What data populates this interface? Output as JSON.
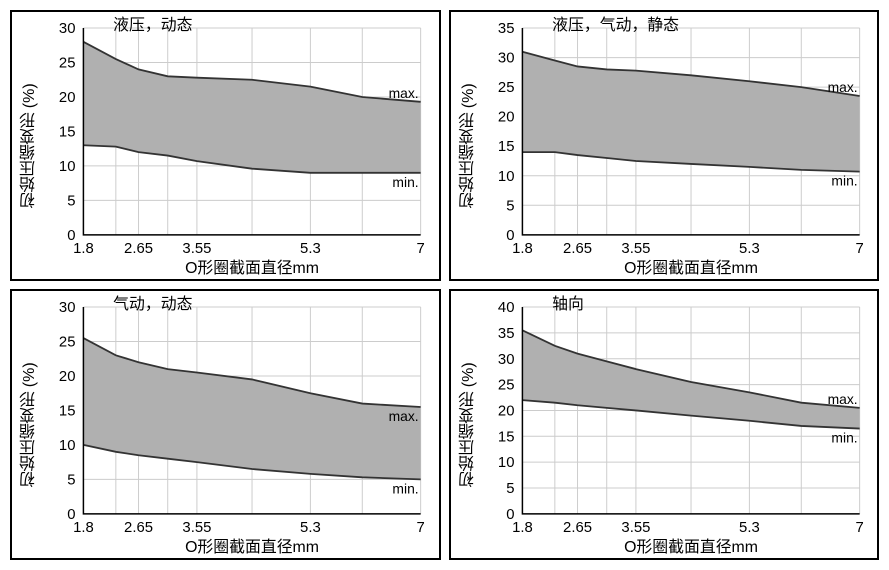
{
  "common": {
    "ylabel": "初始压缩变形 (%)",
    "xlabel": "O形圈截面直径mm",
    "xticks": [
      "1.8",
      "2.65",
      "3.55",
      "5.3",
      "7"
    ],
    "max_label": "max.",
    "min_label": "min.",
    "fill_color": "#b0b0b0",
    "grid_color": "#cccccc",
    "axis_color": "#000000",
    "line_color": "#333333",
    "bg_color": "#ffffff",
    "font_size_label": 16,
    "font_size_tick": 15,
    "x_points": [
      1.8,
      2.3,
      2.65,
      3.1,
      3.55,
      4.4,
      5.3,
      6.1,
      7.0
    ]
  },
  "panels": [
    {
      "title": "液压，动态",
      "ylim": [
        0,
        30
      ],
      "ytick_step": 5,
      "upper": [
        28,
        25.5,
        24,
        23,
        22.8,
        22.5,
        21.5,
        20,
        19.3
      ],
      "lower": [
        13,
        12.8,
        12,
        11.5,
        10.7,
        9.6,
        9,
        9,
        9
      ]
    },
    {
      "title": "液压，气动，静态",
      "ylim": [
        0,
        35
      ],
      "ytick_step": 5,
      "upper": [
        31,
        29.5,
        28.5,
        28,
        27.8,
        27,
        26,
        25,
        23.5
      ],
      "lower": [
        14,
        14,
        13.5,
        13,
        12.5,
        12,
        11.5,
        11,
        10.7
      ]
    },
    {
      "title": "气动，动态",
      "ylim": [
        0,
        30
      ],
      "ytick_step": 5,
      "upper": [
        25.5,
        23,
        22,
        21,
        20.5,
        19.5,
        17.5,
        16,
        15.5
      ],
      "lower": [
        10,
        9,
        8.5,
        8,
        7.5,
        6.5,
        5.8,
        5.3,
        5
      ],
      "annot_pos": "below"
    },
    {
      "title": "轴向",
      "ylim": [
        0,
        40
      ],
      "ytick_step": 5,
      "upper": [
        35.5,
        32.5,
        31,
        29.5,
        28,
        25.5,
        23.5,
        21.5,
        20.5
      ],
      "lower": [
        22,
        21.5,
        21,
        20.5,
        20,
        19,
        18,
        17,
        16.5
      ]
    }
  ]
}
